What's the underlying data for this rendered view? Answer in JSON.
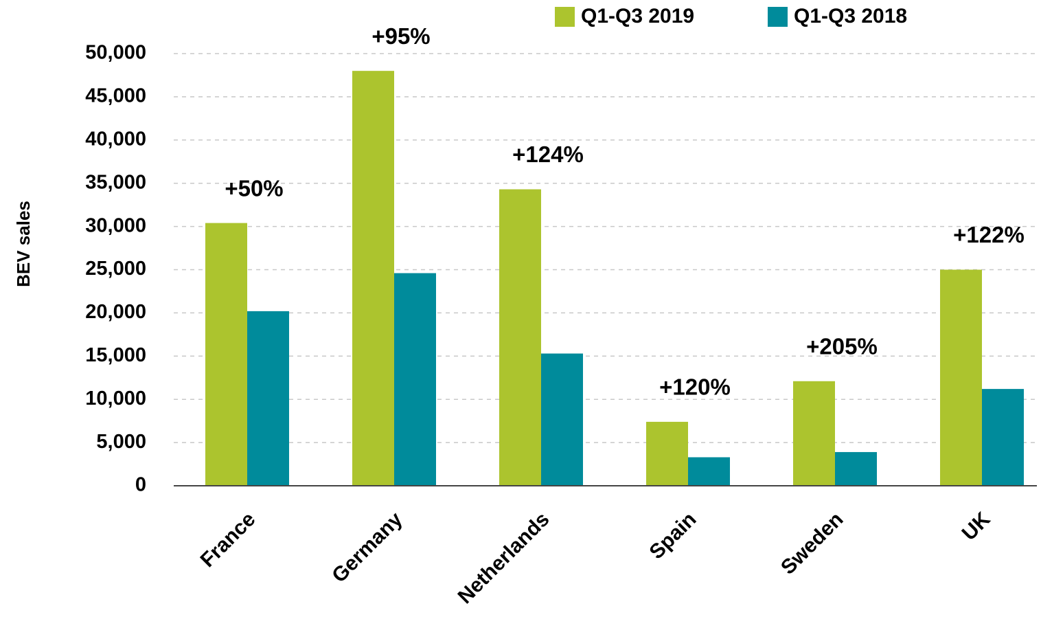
{
  "chart_data": {
    "type": "bar",
    "y_axis_label": "BEV sales",
    "categories": [
      "France",
      "Germany",
      "Netherlands",
      "Spain",
      "Sweden",
      "UK"
    ],
    "series": [
      {
        "name": "Q1-Q3 2019",
        "color": "#acc42e",
        "values": [
          30400,
          48000,
          34300,
          7400,
          12100,
          25000
        ]
      },
      {
        "name": "Q1-Q3 2018",
        "color": "#008b9b",
        "values": [
          20200,
          24600,
          15300,
          3300,
          3900,
          11200
        ]
      }
    ],
    "annotations": [
      "+50%",
      "+95%",
      "+124%",
      "+120%",
      "+205%",
      "+122%"
    ],
    "ylim": [
      0,
      50000
    ],
    "yticks": [
      0,
      {
        "value": 5000,
        "label": "5,000"
      },
      {
        "value": 10000,
        "label": "10,000"
      },
      {
        "value": 15000,
        "label": "15,000"
      },
      {
        "value": 20000,
        "label": "20,000"
      },
      {
        "value": 25000,
        "label": "25,000"
      },
      {
        "value": 30000,
        "label": "30,000"
      },
      {
        "value": 35000,
        "label": "35,000"
      },
      {
        "value": 40000,
        "label": "40,000"
      },
      {
        "value": 45000,
        "label": "45,000"
      },
      {
        "value": 50000,
        "label": "50,000"
      }
    ],
    "grid": true,
    "legend": "top"
  }
}
